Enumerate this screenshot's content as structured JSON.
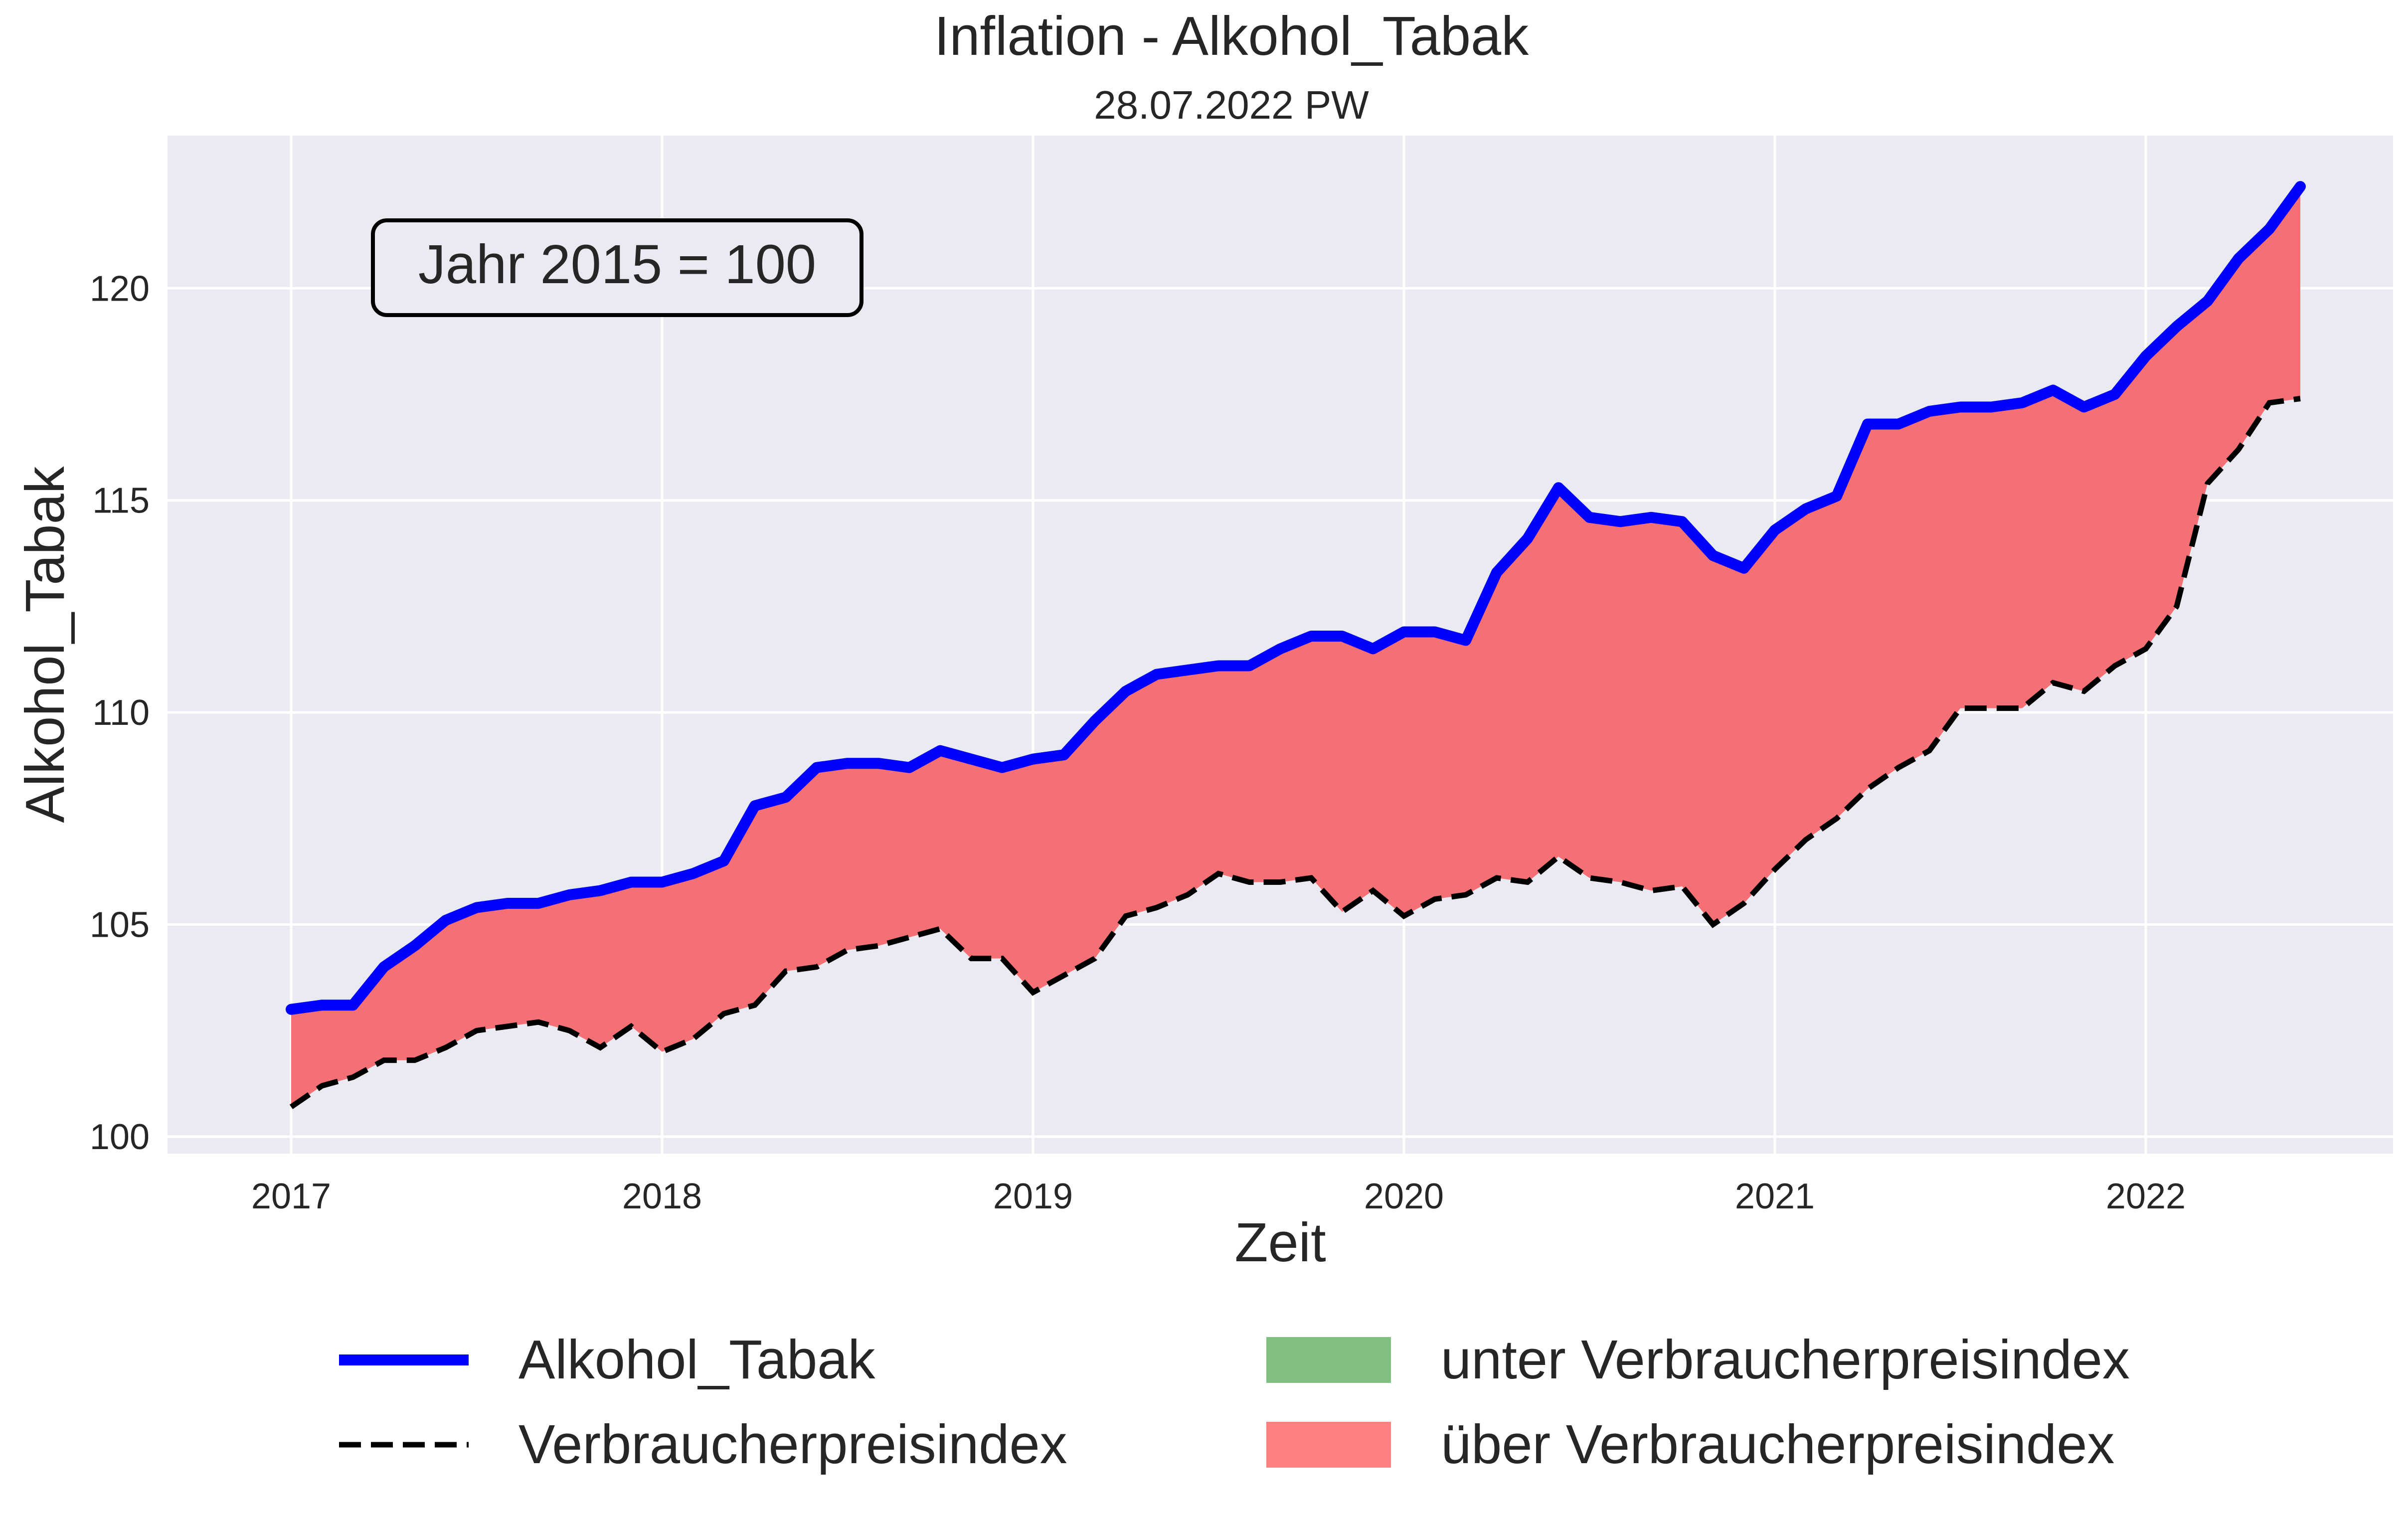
{
  "chart_data": {
    "type": "line",
    "title": "Inflation - Alkohol_Tabak",
    "subtitle": "28.07.2022 PW",
    "xlabel": "Zeit",
    "ylabel": "Alkohol_Tabak",
    "annotation": "Jahr 2015 = 100",
    "x_ticks": [
      "2017",
      "2018",
      "2019",
      "2020",
      "2021",
      "2022"
    ],
    "y_ticks": [
      100,
      105,
      110,
      115,
      120
    ],
    "xlim": [
      "2016-09",
      "2022-09"
    ],
    "ylim": [
      99.6,
      123.6
    ],
    "grid": true,
    "x": [
      "2017-01",
      "2017-02",
      "2017-03",
      "2017-04",
      "2017-05",
      "2017-06",
      "2017-07",
      "2017-08",
      "2017-09",
      "2017-10",
      "2017-11",
      "2017-12",
      "2018-01",
      "2018-02",
      "2018-03",
      "2018-04",
      "2018-05",
      "2018-06",
      "2018-07",
      "2018-08",
      "2018-09",
      "2018-10",
      "2018-11",
      "2018-12",
      "2019-01",
      "2019-02",
      "2019-03",
      "2019-04",
      "2019-05",
      "2019-06",
      "2019-07",
      "2019-08",
      "2019-09",
      "2019-10",
      "2019-11",
      "2019-12",
      "2020-01",
      "2020-02",
      "2020-03",
      "2020-04",
      "2020-05",
      "2020-06",
      "2020-07",
      "2020-08",
      "2020-09",
      "2020-10",
      "2020-11",
      "2020-12",
      "2021-01",
      "2021-02",
      "2021-03",
      "2021-04",
      "2021-05",
      "2021-06",
      "2021-07",
      "2021-08",
      "2021-09",
      "2021-10",
      "2021-11",
      "2021-12",
      "2022-01",
      "2022-02",
      "2022-03",
      "2022-04",
      "2022-05",
      "2022-06"
    ],
    "series": [
      {
        "name": "Alkohol_Tabak",
        "color": "#0000ff",
        "style": "solid",
        "values": [
          103.0,
          103.1,
          103.1,
          104.0,
          104.5,
          105.1,
          105.4,
          105.5,
          105.5,
          105.7,
          105.8,
          106.0,
          106.0,
          106.2,
          106.5,
          107.8,
          108.0,
          108.7,
          108.8,
          108.8,
          108.7,
          109.1,
          108.9,
          108.7,
          108.9,
          109.0,
          109.8,
          110.5,
          110.9,
          111.0,
          111.1,
          111.1,
          111.5,
          111.8,
          111.8,
          111.5,
          111.9,
          111.9,
          111.7,
          113.3,
          114.1,
          115.3,
          114.6,
          114.5,
          114.6,
          114.5,
          113.7,
          113.4,
          114.3,
          114.8,
          115.1,
          116.8,
          116.8,
          117.1,
          117.2,
          117.2,
          117.3,
          117.6,
          117.2,
          117.5,
          118.4,
          119.1,
          119.7,
          120.7,
          121.4,
          122.4
        ]
      },
      {
        "name": "Verbraucherpreisindex",
        "color": "#000000",
        "style": "dashed",
        "values": [
          100.7,
          101.2,
          101.4,
          101.8,
          101.8,
          102.1,
          102.5,
          102.6,
          102.7,
          102.5,
          102.1,
          102.6,
          102.0,
          102.3,
          102.9,
          103.1,
          103.9,
          104.0,
          104.4,
          104.5,
          104.7,
          104.9,
          104.2,
          104.2,
          103.4,
          103.8,
          104.2,
          105.2,
          105.4,
          105.7,
          106.2,
          106.0,
          106.0,
          106.1,
          105.3,
          105.8,
          105.2,
          105.6,
          105.7,
          106.1,
          106.0,
          106.6,
          106.1,
          106.0,
          105.8,
          105.9,
          105.0,
          105.5,
          106.3,
          107.0,
          107.5,
          108.2,
          108.7,
          109.1,
          110.1,
          110.1,
          110.1,
          110.7,
          110.5,
          111.1,
          111.5,
          112.5,
          115.4,
          116.2,
          117.3,
          117.4
        ]
      }
    ],
    "legend": {
      "placement": "bottom",
      "entries": [
        {
          "label": "Alkohol_Tabak",
          "kind": "line",
          "color": "#0000ff"
        },
        {
          "label": "Verbraucherpreisindex",
          "kind": "dashed",
          "color": "#000000"
        },
        {
          "label": "unter Verbraucherpreisindex",
          "kind": "patch",
          "color": "#80bf80"
        },
        {
          "label": "über Verbraucherpreisindex",
          "kind": "patch",
          "color": "#ff8080"
        }
      ]
    },
    "fill_colors": {
      "above": "#f47074",
      "below": "#80bf80"
    },
    "background_color": "#eaeaf2"
  }
}
